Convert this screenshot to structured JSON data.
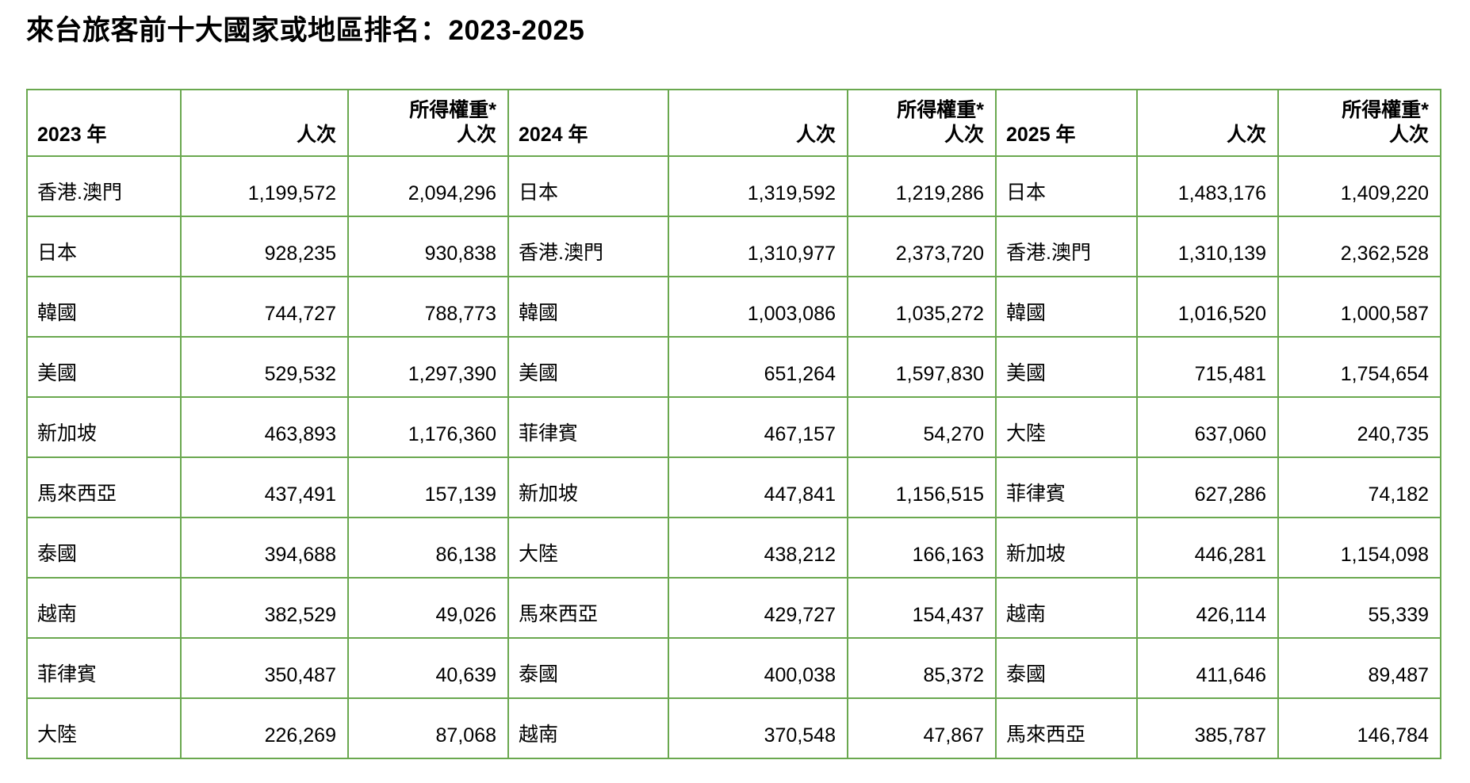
{
  "title": "來台旅客前十大國家或地區排名：2023-2025",
  "colors": {
    "table_border": "#6aa84f",
    "row_stripe": "#def0d8",
    "text": "#000000",
    "background": "#ffffff"
  },
  "table": {
    "groups": [
      {
        "year_label": "2023 年",
        "visits_label": "人次",
        "weighted_label_line1": "所得權重*",
        "weighted_label_line2": "人次"
      },
      {
        "year_label": "2024 年",
        "visits_label": "人次",
        "weighted_label_line1": "所得權重*",
        "weighted_label_line2": "人次"
      },
      {
        "year_label": "2025 年",
        "visits_label": "人次",
        "weighted_label_line1": "所得權重*",
        "weighted_label_line2": "人次"
      }
    ],
    "rows": [
      [
        "香港.澳門",
        "1,199,572",
        "2,094,296",
        "日本",
        "1,319,592",
        "1,219,286",
        "日本",
        "1,483,176",
        "1,409,220"
      ],
      [
        "日本",
        "928,235",
        "930,838",
        "香港.澳門",
        "1,310,977",
        "2,373,720",
        "香港.澳門",
        "1,310,139",
        "2,362,528"
      ],
      [
        "韓國",
        "744,727",
        "788,773",
        "韓國",
        "1,003,086",
        "1,035,272",
        "韓國",
        "1,016,520",
        "1,000,587"
      ],
      [
        "美國",
        "529,532",
        "1,297,390",
        "美國",
        "651,264",
        "1,597,830",
        "美國",
        "715,481",
        "1,754,654"
      ],
      [
        "新加坡",
        "463,893",
        "1,176,360",
        "菲律賓",
        "467,157",
        "54,270",
        "大陸",
        "637,060",
        "240,735"
      ],
      [
        "馬來西亞",
        "437,491",
        "157,139",
        "新加坡",
        "447,841",
        "1,156,515",
        "菲律賓",
        "627,286",
        "74,182"
      ],
      [
        "泰國",
        "394,688",
        "86,138",
        "大陸",
        "438,212",
        "166,163",
        "新加坡",
        "446,281",
        "1,154,098"
      ],
      [
        "越南",
        "382,529",
        "49,026",
        "馬來西亞",
        "429,727",
        "154,437",
        "越南",
        "426,114",
        "55,339"
      ],
      [
        "菲律賓",
        "350,487",
        "40,639",
        "泰國",
        "400,038",
        "85,372",
        "泰國",
        "411,646",
        "89,487"
      ],
      [
        "大陸",
        "226,269",
        "87,068",
        "越南",
        "370,548",
        "47,867",
        "馬來西亞",
        "385,787",
        "146,784"
      ]
    ]
  }
}
